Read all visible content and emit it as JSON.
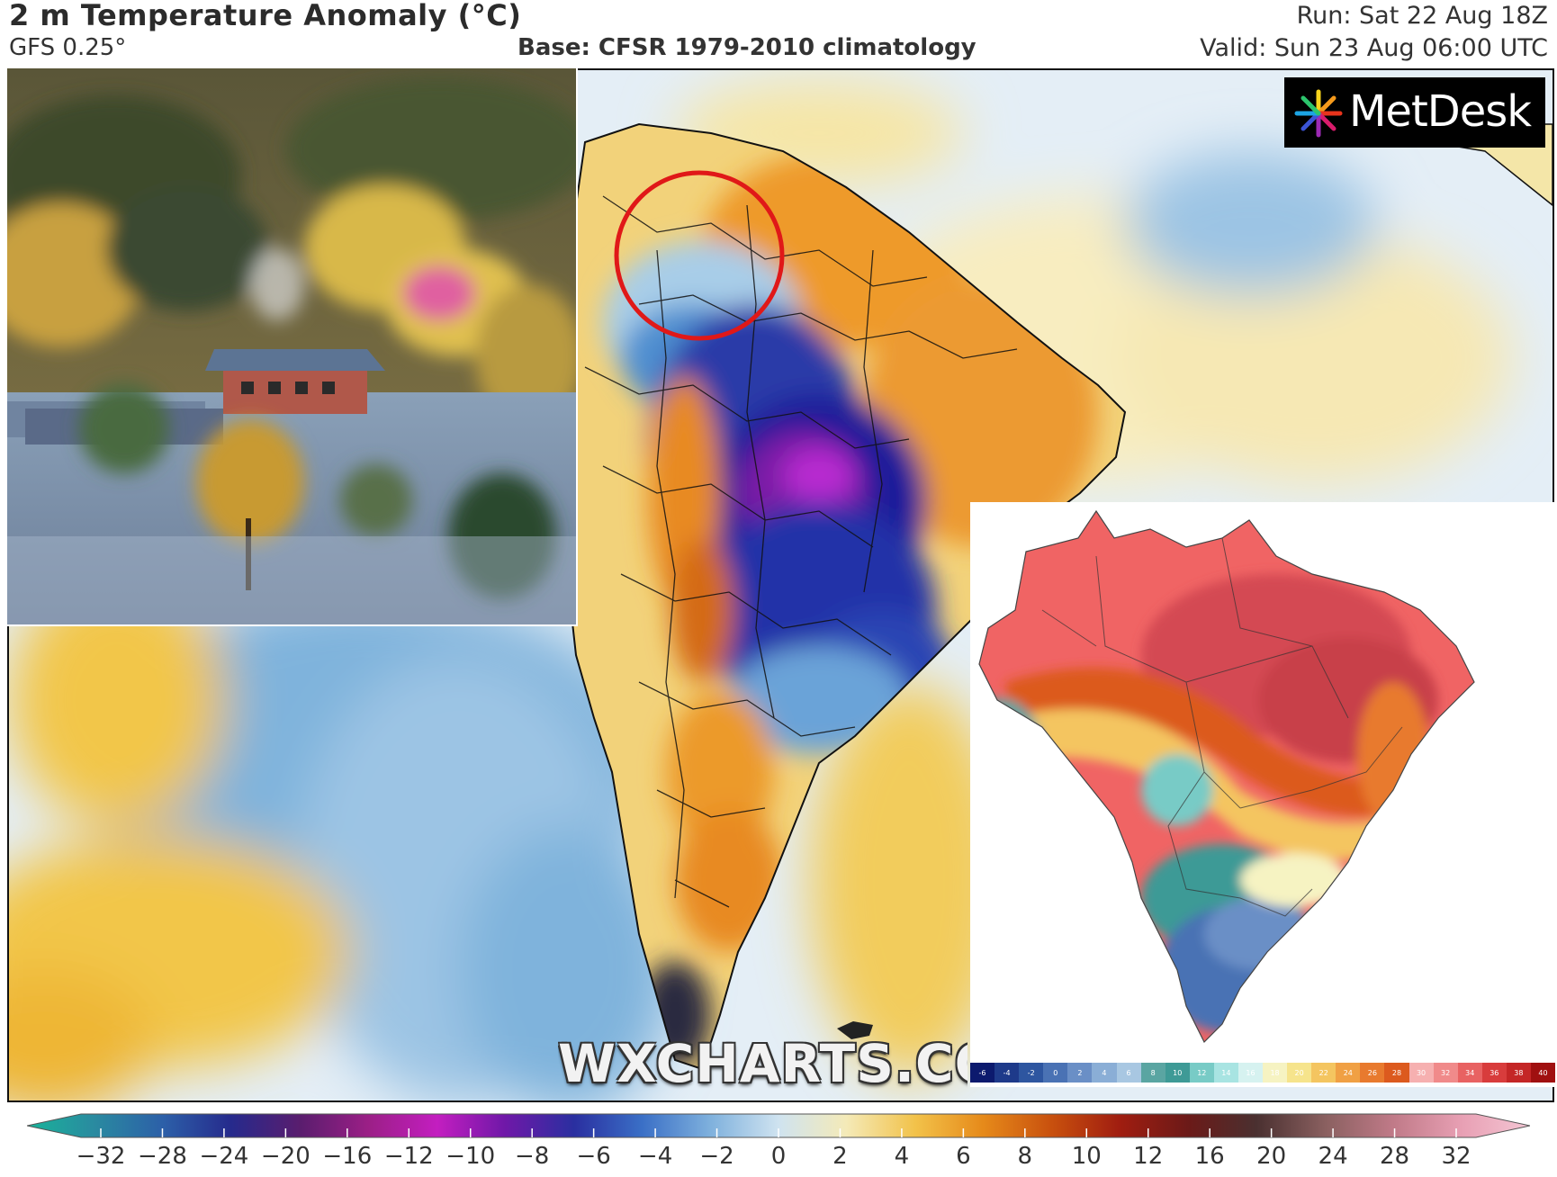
{
  "header": {
    "title": "2 m Temperature Anomaly (°C)",
    "model": "GFS 0.25°",
    "base": "Base: CFSR 1979-2010 climatology",
    "run": "Run: Sat 22 Aug 18Z",
    "valid": "Valid: Sun 23 Aug 06:00 UTC"
  },
  "logos": {
    "metdesk": "MetDesk",
    "watermark": "WXCHARTS.COM"
  },
  "colorbar": {
    "ticks": [
      "−32",
      "−28",
      "−24",
      "−20",
      "−16",
      "−12",
      "−10",
      "−8",
      "−6",
      "−4",
      "−2",
      "0",
      "2",
      "4",
      "6",
      "8",
      "10",
      "12",
      "16",
      "20",
      "24",
      "28",
      "32"
    ],
    "colors": [
      "#18b49a",
      "#2a8aa0",
      "#2c5fa8",
      "#262a8c",
      "#5a1d6e",
      "#9b1f86",
      "#c31ec0",
      "#6f18a8",
      "#2a2fa0",
      "#3a6fc6",
      "#7fb1dd",
      "#cfe3f0",
      "#f4eab8",
      "#f2c24a",
      "#e68a1a",
      "#c8500e",
      "#a01d10",
      "#6b1a18",
      "#4a3030",
      "#8a6060",
      "#c07a88",
      "#e8a0b4",
      "#f4c6d4"
    ]
  },
  "brazil_colorbar": {
    "ticks": [
      "-6",
      "-4",
      "-2",
      "0",
      "2",
      "4",
      "6",
      "8",
      "10",
      "12",
      "14",
      "16",
      "18",
      "20",
      "22",
      "24",
      "26",
      "28",
      "30",
      "32",
      "34",
      "36",
      "38",
      "40"
    ],
    "colors": [
      "#0c1a6e",
      "#1e3a8a",
      "#2e56a0",
      "#4a72b4",
      "#6a8fc6",
      "#8aaed6",
      "#a8c7e2",
      "#5aa5a2",
      "#3e9a96",
      "#78cbc6",
      "#a8e4e2",
      "#d6f2f0",
      "#f6f3c2",
      "#f6e48c",
      "#f4c560",
      "#f0a044",
      "#e87a2e",
      "#dc5a1e",
      "#f6b0b0",
      "#f08a8a",
      "#e86262",
      "#d83c3c",
      "#c42626",
      "#a01010"
    ]
  }
}
